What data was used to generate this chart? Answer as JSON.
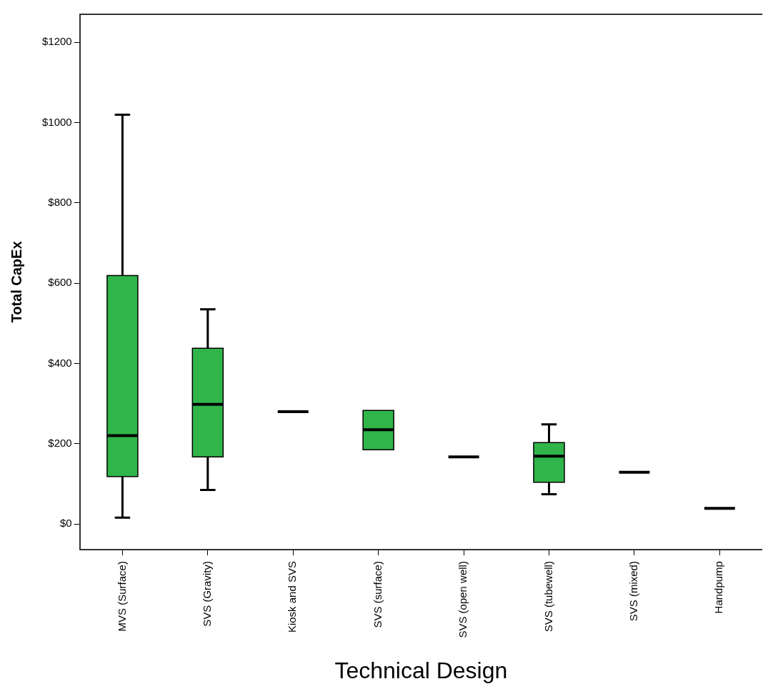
{
  "chart_data": {
    "type": "box",
    "xlabel": "Technical Design",
    "ylabel": "Total CapEx",
    "categories": [
      "MVS (Surface)",
      "SVS (Gravity)",
      "Kiosk and SVS",
      "SVS (surface)",
      "SVS (open well)",
      "SVS (tubewell)",
      "SVS (mixed)",
      "Handpump"
    ],
    "colors": [
      "#30b54a",
      "#30b54a",
      "#000000",
      "#30b54a",
      "#000000",
      "#30b54a",
      "#000000",
      "#000000"
    ],
    "boxes": [
      {
        "low": 16,
        "q1": 118,
        "median": 220,
        "q3": 619,
        "high": 1020
      },
      {
        "low": 85,
        "q1": 167,
        "median": 298,
        "q3": 438,
        "high": 535
      },
      {
        "low": 280,
        "q1": 280,
        "median": 280,
        "q3": 280,
        "high": 280
      },
      {
        "low": 185,
        "q1": 185,
        "median": 235,
        "q3": 283,
        "high": 283
      },
      {
        "low": 167,
        "q1": 167,
        "median": 167,
        "q3": 167,
        "high": 167
      },
      {
        "low": 74,
        "q1": 104,
        "median": 169,
        "q3": 203,
        "high": 248
      },
      {
        "low": 129,
        "q1": 129,
        "median": 129,
        "q3": 129,
        "high": 129
      },
      {
        "low": 39,
        "q1": 39,
        "median": 39,
        "q3": 39,
        "high": 39
      }
    ],
    "ylim": [
      -64,
      1270
    ],
    "yticks": [
      {
        "value": 0,
        "label": "$0"
      },
      {
        "value": 200,
        "label": "$200"
      },
      {
        "value": 400,
        "label": "$400"
      },
      {
        "value": 600,
        "label": "$600"
      },
      {
        "value": 800,
        "label": "$800"
      },
      {
        "value": 1000,
        "label": "$1000"
      },
      {
        "value": 1200,
        "label": "$1200"
      }
    ]
  }
}
